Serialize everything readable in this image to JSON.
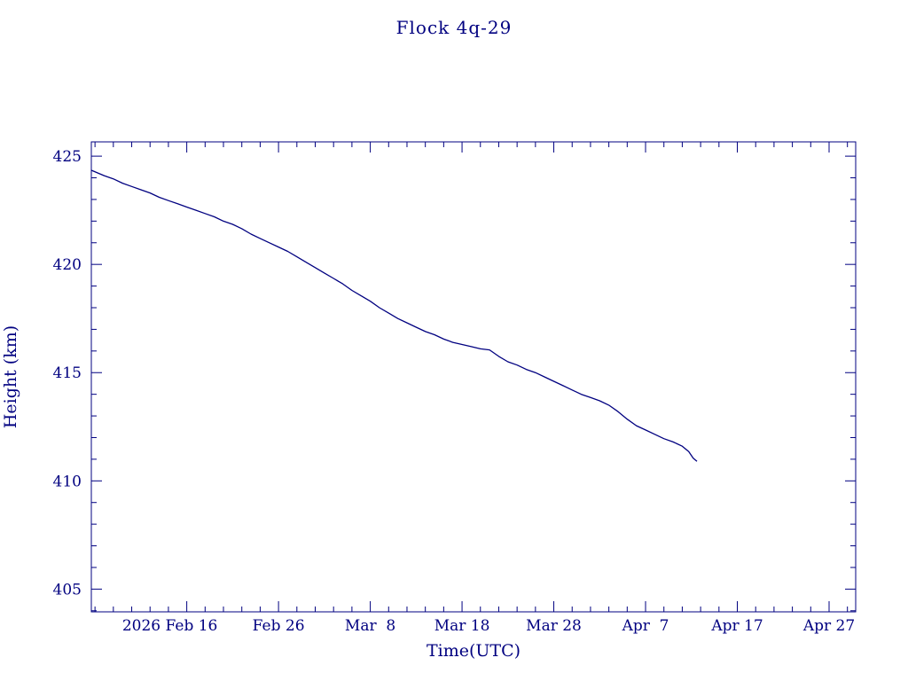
{
  "page": {
    "background_color": "#ffffff",
    "accent_color": "#000080"
  },
  "chart_data": {
    "type": "line",
    "title": "Flock 4q-29",
    "xlabel": "Time(UTC)",
    "ylabel": "Height (km)",
    "line_color": "#000080",
    "axis_color": "#000080",
    "grid": false,
    "legend": false,
    "x_unit": "days since 2026 Feb 16",
    "x_domain": [
      -10.4,
      72.9
    ],
    "y_domain": [
      403.95,
      425.66
    ],
    "x_major_ticks": [
      {
        "value": 0,
        "label": "2026 Feb 16",
        "label_dx": -19
      },
      {
        "value": 10,
        "label": "Feb 26"
      },
      {
        "value": 20,
        "label": "Mar  8"
      },
      {
        "value": 30,
        "label": "Mar 18"
      },
      {
        "value": 40,
        "label": "Mar 28"
      },
      {
        "value": 50,
        "label": "Apr  7"
      },
      {
        "value": 60,
        "label": "Apr 17"
      },
      {
        "value": 70,
        "label": "Apr 27"
      }
    ],
    "x_minor_step": 2,
    "y_major_ticks": [
      405,
      410,
      415,
      420,
      425
    ],
    "y_minor_step": 1,
    "series": [
      {
        "name": "Flock 4q-29 height",
        "points": [
          [
            -10.4,
            424.35
          ],
          [
            -9,
            424.1
          ],
          [
            -8,
            423.95
          ],
          [
            -7,
            423.75
          ],
          [
            -6,
            423.6
          ],
          [
            -5,
            423.45
          ],
          [
            -4,
            423.3
          ],
          [
            -3,
            423.1
          ],
          [
            -2,
            422.95
          ],
          [
            -1,
            422.8
          ],
          [
            0,
            422.65
          ],
          [
            1,
            422.5
          ],
          [
            2,
            422.35
          ],
          [
            3,
            422.2
          ],
          [
            4,
            422.0
          ],
          [
            5,
            421.85
          ],
          [
            6,
            421.65
          ],
          [
            7,
            421.4
          ],
          [
            8,
            421.2
          ],
          [
            9,
            421.0
          ],
          [
            10,
            420.8
          ],
          [
            11,
            420.6
          ],
          [
            12,
            420.35
          ],
          [
            13,
            420.1
          ],
          [
            14,
            419.85
          ],
          [
            15,
            419.6
          ],
          [
            16,
            419.35
          ],
          [
            17,
            419.1
          ],
          [
            18,
            418.8
          ],
          [
            19,
            418.55
          ],
          [
            20,
            418.3
          ],
          [
            21,
            418.0
          ],
          [
            22,
            417.75
          ],
          [
            23,
            417.5
          ],
          [
            24,
            417.3
          ],
          [
            25,
            417.1
          ],
          [
            26,
            416.9
          ],
          [
            27,
            416.75
          ],
          [
            28,
            416.55
          ],
          [
            29,
            416.4
          ],
          [
            30,
            416.3
          ],
          [
            31,
            416.2
          ],
          [
            32,
            416.1
          ],
          [
            33,
            416.05
          ],
          [
            34,
            415.75
          ],
          [
            35,
            415.5
          ],
          [
            36,
            415.35
          ],
          [
            37,
            415.15
          ],
          [
            38,
            415.0
          ],
          [
            39,
            414.8
          ],
          [
            40,
            414.6
          ],
          [
            41,
            414.4
          ],
          [
            42,
            414.2
          ],
          [
            43,
            414.0
          ],
          [
            44,
            413.85
          ],
          [
            45,
            413.7
          ],
          [
            46,
            413.5
          ],
          [
            47,
            413.2
          ],
          [
            48,
            412.85
          ],
          [
            49,
            412.55
          ],
          [
            50,
            412.35
          ],
          [
            51,
            412.15
          ],
          [
            52,
            411.95
          ],
          [
            53,
            411.8
          ],
          [
            54,
            411.6
          ],
          [
            54.7,
            411.35
          ],
          [
            55.2,
            411.05
          ],
          [
            55.6,
            410.9
          ]
        ]
      }
    ]
  }
}
